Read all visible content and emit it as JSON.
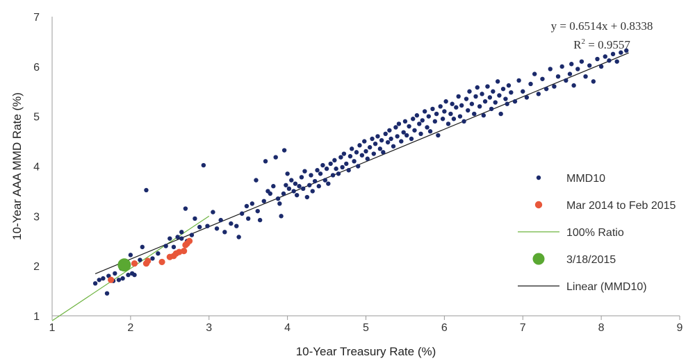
{
  "chart_data": {
    "type": "scatter",
    "xlabel": "10-Year Treasury Rate (%)",
    "ylabel": "10-Year AAA MMD Rate (%)",
    "xlim": [
      1,
      9
    ],
    "ylim": [
      1,
      7
    ],
    "x_ticks": [
      "1",
      "2",
      "3",
      "4",
      "5",
      "6",
      "7",
      "8",
      "9"
    ],
    "y_ticks": [
      "1",
      "2",
      "3",
      "4",
      "5",
      "6",
      "7"
    ],
    "grid": false,
    "legend_position": "right",
    "series": [
      {
        "name": "MMD10",
        "color": "#1b2a6b",
        "marker": "dot",
        "points": [
          [
            1.55,
            1.65
          ],
          [
            1.6,
            1.72
          ],
          [
            1.65,
            1.75
          ],
          [
            1.7,
            1.45
          ],
          [
            1.72,
            1.8
          ],
          [
            1.78,
            1.7
          ],
          [
            1.8,
            1.85
          ],
          [
            1.85,
            1.72
          ],
          [
            1.88,
            1.95
          ],
          [
            1.9,
            1.75
          ],
          [
            1.95,
            2.05
          ],
          [
            1.97,
            1.82
          ],
          [
            2.0,
            2.22
          ],
          [
            2.02,
            1.85
          ],
          [
            2.05,
            1.82
          ],
          [
            2.12,
            2.12
          ],
          [
            2.15,
            2.38
          ],
          [
            2.2,
            3.52
          ],
          [
            2.22,
            2.1
          ],
          [
            2.28,
            2.15
          ],
          [
            2.35,
            2.25
          ],
          [
            2.45,
            2.4
          ],
          [
            2.5,
            2.55
          ],
          [
            2.55,
            2.38
          ],
          [
            2.6,
            2.58
          ],
          [
            2.65,
            2.55
          ],
          [
            2.65,
            2.68
          ],
          [
            2.7,
            3.15
          ],
          [
            2.72,
            2.5
          ],
          [
            2.78,
            2.62
          ],
          [
            2.82,
            2.95
          ],
          [
            2.88,
            2.78
          ],
          [
            2.93,
            4.02
          ],
          [
            2.98,
            2.8
          ],
          [
            3.05,
            3.08
          ],
          [
            3.1,
            2.75
          ],
          [
            3.15,
            2.92
          ],
          [
            3.2,
            2.68
          ],
          [
            3.28,
            2.85
          ],
          [
            3.35,
            2.8
          ],
          [
            3.38,
            2.58
          ],
          [
            3.42,
            3.05
          ],
          [
            3.48,
            3.2
          ],
          [
            3.5,
            2.95
          ],
          [
            3.55,
            3.25
          ],
          [
            3.6,
            3.72
          ],
          [
            3.62,
            3.1
          ],
          [
            3.65,
            2.92
          ],
          [
            3.7,
            3.3
          ],
          [
            3.72,
            4.1
          ],
          [
            3.75,
            3.5
          ],
          [
            3.78,
            3.45
          ],
          [
            3.82,
            3.6
          ],
          [
            3.85,
            4.18
          ],
          [
            3.88,
            3.35
          ],
          [
            3.9,
            3.25
          ],
          [
            3.92,
            3.0
          ],
          [
            3.95,
            3.45
          ],
          [
            3.96,
            4.32
          ],
          [
            3.98,
            3.62
          ],
          [
            4.0,
            3.85
          ],
          [
            4.02,
            3.55
          ],
          [
            4.05,
            3.72
          ],
          [
            4.08,
            3.5
          ],
          [
            4.1,
            3.65
          ],
          [
            4.12,
            3.42
          ],
          [
            4.15,
            3.6
          ],
          [
            4.18,
            3.78
          ],
          [
            4.2,
            3.55
          ],
          [
            4.22,
            3.9
          ],
          [
            4.25,
            3.38
          ],
          [
            4.28,
            3.62
          ],
          [
            4.3,
            3.82
          ],
          [
            4.32,
            3.5
          ],
          [
            4.35,
            3.7
          ],
          [
            4.38,
            3.92
          ],
          [
            4.4,
            3.6
          ],
          [
            4.42,
            3.85
          ],
          [
            4.45,
            4.02
          ],
          [
            4.48,
            3.72
          ],
          [
            4.5,
            3.95
          ],
          [
            4.52,
            3.65
          ],
          [
            4.55,
            4.05
          ],
          [
            4.58,
            3.82
          ],
          [
            4.6,
            4.12
          ],
          [
            4.62,
            3.95
          ],
          [
            4.65,
            3.85
          ],
          [
            4.68,
            4.18
          ],
          [
            4.7,
            3.98
          ],
          [
            4.72,
            4.25
          ],
          [
            4.75,
            4.05
          ],
          [
            4.78,
            3.92
          ],
          [
            4.8,
            4.2
          ],
          [
            4.82,
            4.35
          ],
          [
            4.85,
            4.1
          ],
          [
            4.88,
            4.28
          ],
          [
            4.9,
            4.0
          ],
          [
            4.92,
            4.42
          ],
          [
            4.95,
            4.22
          ],
          [
            4.98,
            4.5
          ],
          [
            5.0,
            4.3
          ],
          [
            5.02,
            4.15
          ],
          [
            5.05,
            4.38
          ],
          [
            5.08,
            4.55
          ],
          [
            5.1,
            4.25
          ],
          [
            5.12,
            4.45
          ],
          [
            5.15,
            4.6
          ],
          [
            5.18,
            4.35
          ],
          [
            5.2,
            4.52
          ],
          [
            5.22,
            4.28
          ],
          [
            5.25,
            4.65
          ],
          [
            5.28,
            4.48
          ],
          [
            5.3,
            4.72
          ],
          [
            5.32,
            4.55
          ],
          [
            5.35,
            4.4
          ],
          [
            5.38,
            4.78
          ],
          [
            5.4,
            4.6
          ],
          [
            5.42,
            4.85
          ],
          [
            5.45,
            4.5
          ],
          [
            5.48,
            4.68
          ],
          [
            5.5,
            4.9
          ],
          [
            5.52,
            4.62
          ],
          [
            5.55,
            4.8
          ],
          [
            5.58,
            4.55
          ],
          [
            5.6,
            4.95
          ],
          [
            5.62,
            4.72
          ],
          [
            5.65,
            5.02
          ],
          [
            5.68,
            4.85
          ],
          [
            5.7,
            4.65
          ],
          [
            5.72,
            4.92
          ],
          [
            5.75,
            5.1
          ],
          [
            5.78,
            4.78
          ],
          [
            5.8,
            5.0
          ],
          [
            5.82,
            4.7
          ],
          [
            5.85,
            5.15
          ],
          [
            5.88,
            4.9
          ],
          [
            5.9,
            5.05
          ],
          [
            5.92,
            4.62
          ],
          [
            5.95,
            5.2
          ],
          [
            5.98,
            4.95
          ],
          [
            6.0,
            5.1
          ],
          [
            6.02,
            5.3
          ],
          [
            6.05,
            4.85
          ],
          [
            6.08,
            5.05
          ],
          [
            6.1,
            5.25
          ],
          [
            6.12,
            4.95
          ],
          [
            6.15,
            5.18
          ],
          [
            6.18,
            5.4
          ],
          [
            6.2,
            5.0
          ],
          [
            6.22,
            5.22
          ],
          [
            6.25,
            4.9
          ],
          [
            6.28,
            5.35
          ],
          [
            6.3,
            5.12
          ],
          [
            6.32,
            5.5
          ],
          [
            6.35,
            5.25
          ],
          [
            6.38,
            5.05
          ],
          [
            6.4,
            5.4
          ],
          [
            6.42,
            5.58
          ],
          [
            6.45,
            5.2
          ],
          [
            6.48,
            5.45
          ],
          [
            6.5,
            5.02
          ],
          [
            6.52,
            5.3
          ],
          [
            6.55,
            5.6
          ],
          [
            6.58,
            5.38
          ],
          [
            6.6,
            5.15
          ],
          [
            6.62,
            5.5
          ],
          [
            6.65,
            5.28
          ],
          [
            6.68,
            5.7
          ],
          [
            6.7,
            5.42
          ],
          [
            6.72,
            5.05
          ],
          [
            6.75,
            5.55
          ],
          [
            6.78,
            5.35
          ],
          [
            6.8,
            5.25
          ],
          [
            6.82,
            5.62
          ],
          [
            6.85,
            5.48
          ],
          [
            6.9,
            5.3
          ],
          [
            6.95,
            5.72
          ],
          [
            7.0,
            5.5
          ],
          [
            7.05,
            5.38
          ],
          [
            7.1,
            5.65
          ],
          [
            7.15,
            5.85
          ],
          [
            7.2,
            5.45
          ],
          [
            7.25,
            5.75
          ],
          [
            7.3,
            5.55
          ],
          [
            7.35,
            5.95
          ],
          [
            7.4,
            5.6
          ],
          [
            7.45,
            5.8
          ],
          [
            7.5,
            6.0
          ],
          [
            7.55,
            5.72
          ],
          [
            7.6,
            5.85
          ],
          [
            7.62,
            6.05
          ],
          [
            7.65,
            5.62
          ],
          [
            7.7,
            5.95
          ],
          [
            7.75,
            6.1
          ],
          [
            7.8,
            5.8
          ],
          [
            7.85,
            6.02
          ],
          [
            7.9,
            5.7
          ],
          [
            7.95,
            6.15
          ],
          [
            8.0,
            6.0
          ],
          [
            8.05,
            6.2
          ],
          [
            8.1,
            6.12
          ],
          [
            8.15,
            6.25
          ],
          [
            8.2,
            6.1
          ],
          [
            8.25,
            6.28
          ],
          [
            8.32,
            6.32
          ]
        ]
      },
      {
        "name": "Mar 2014 to Feb 2015",
        "color": "#e8573a",
        "marker": "dot-large",
        "points": [
          [
            1.75,
            1.72
          ],
          [
            2.05,
            2.05
          ],
          [
            2.2,
            2.05
          ],
          [
            2.22,
            2.1
          ],
          [
            2.4,
            2.08
          ],
          [
            2.5,
            2.18
          ],
          [
            2.55,
            2.2
          ],
          [
            2.58,
            2.25
          ],
          [
            2.62,
            2.28
          ],
          [
            2.68,
            2.3
          ],
          [
            2.7,
            2.42
          ],
          [
            2.72,
            2.45
          ],
          [
            2.75,
            2.5
          ]
        ]
      },
      {
        "name": "3/18/2015",
        "color": "#5aa832",
        "marker": "dot-huge",
        "points": [
          [
            1.92,
            2.02
          ]
        ]
      }
    ],
    "lines": [
      {
        "name": "100% Ratio",
        "color": "#6db33f",
        "from": [
          1,
          0.9
        ],
        "to": [
          3,
          3.0
        ]
      },
      {
        "name": "Linear (MMD10)",
        "color": "#1a1a1a",
        "slope": 0.6514,
        "intercept": 0.8338,
        "x_range": [
          1.55,
          8.35
        ]
      }
    ],
    "legend": [
      {
        "label": "MMD10",
        "kind": "dot-small",
        "color": "#1b2a6b"
      },
      {
        "label": "Mar 2014 to Feb 2015",
        "kind": "dot-medium",
        "color": "#e8573a"
      },
      {
        "label": "100% Ratio",
        "kind": "line",
        "color": "#6db33f"
      },
      {
        "label": "3/18/2015",
        "kind": "dot-large",
        "color": "#5aa832"
      },
      {
        "label": "Linear (MMD10)",
        "kind": "line",
        "color": "#1a1a1a"
      }
    ],
    "annotation": {
      "equation": "y = 0.6514x + 0.8338",
      "r2_label": "R",
      "r2_sup": "2",
      "r2_value": " = 0.9557"
    }
  }
}
